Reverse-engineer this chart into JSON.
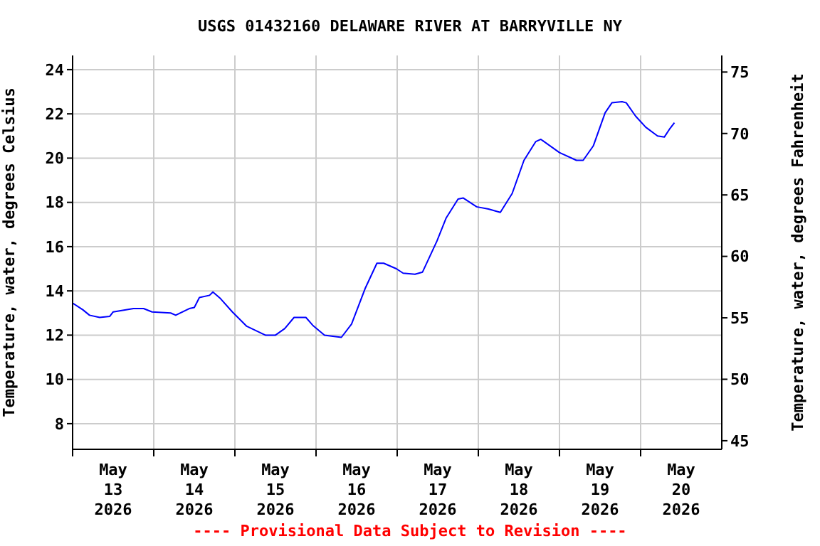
{
  "chart_data": {
    "type": "line",
    "title": "USGS 01432160 DELAWARE RIVER AT BARRYVILLE NY",
    "ylabel": "Temperature, water, degrees Celsius",
    "y2label": "Temperature, water, degrees Fahrenheit",
    "annotations": [
      "---- Provisional Data Subject to Revision ----"
    ],
    "x": [
      "2026-05-13T00:00",
      "2026-05-13T03:00",
      "2026-05-13T05:00",
      "2026-05-13T08:00",
      "2026-05-13T11:00",
      "2026-05-13T12:00",
      "2026-05-13T18:00",
      "2026-05-13T21:00",
      "2026-05-13T23:30",
      "2026-05-14T05:00",
      "2026-05-14T06:30",
      "2026-05-14T10:30",
      "2026-05-14T12:00",
      "2026-05-14T13:30",
      "2026-05-14T16:30",
      "2026-05-14T17:30",
      "2026-05-14T19:45",
      "2026-05-14T23:15",
      "2026-05-15T03:30",
      "2026-05-15T09:00",
      "2026-05-15T12:00",
      "2026-05-15T14:45",
      "2026-05-15T17:30",
      "2026-05-15T21:00",
      "2026-05-15T23:00",
      "2026-05-16T02:30",
      "2026-05-16T07:30",
      "2026-05-16T10:30",
      "2026-05-16T14:30",
      "2026-05-16T18:00",
      "2026-05-16T20:00",
      "2026-05-16T23:45",
      "2026-05-17T01:45",
      "2026-05-17T05:15",
      "2026-05-17T07:30",
      "2026-05-17T11:45",
      "2026-05-17T14:30",
      "2026-05-17T18:00",
      "2026-05-17T19:30",
      "2026-05-17T23:30",
      "2026-05-18T03:00",
      "2026-05-18T06:30",
      "2026-05-18T10:00",
      "2026-05-18T13:30",
      "2026-05-18T17:00",
      "2026-05-18T18:30",
      "2026-05-19T00:00",
      "2026-05-19T05:00",
      "2026-05-19T07:00",
      "2026-05-19T10:00",
      "2026-05-19T13:30",
      "2026-05-19T15:30",
      "2026-05-19T18:30",
      "2026-05-19T19:45",
      "2026-05-19T22:30",
      "2026-05-20T01:30",
      "2026-05-20T05:00",
      "2026-05-20T07:00",
      "2026-05-20T08:30",
      "2026-05-20T10:00"
    ],
    "series": [
      {
        "color": "#0000ff",
        "values": [
          13.45,
          13.15,
          12.9,
          12.8,
          12.85,
          13.05,
          13.2,
          13.2,
          13.05,
          13.0,
          12.9,
          13.2,
          13.25,
          13.7,
          13.8,
          13.95,
          13.65,
          13.05,
          12.4,
          12.0,
          12.0,
          12.3,
          12.8,
          12.8,
          12.45,
          12.0,
          11.9,
          12.5,
          14.1,
          15.25,
          15.25,
          15.0,
          14.8,
          14.75,
          14.85,
          16.25,
          17.3,
          18.15,
          18.2,
          17.8,
          17.7,
          17.55,
          18.4,
          19.9,
          20.75,
          20.85,
          20.25,
          19.9,
          19.9,
          20.55,
          22.05,
          22.5,
          22.55,
          22.5,
          21.9,
          21.4,
          21.0,
          20.95,
          21.3,
          21.6
        ]
      }
    ],
    "xlim": [
      "2026-05-13T00:00",
      "2026-05-21T00:00"
    ],
    "xticks": [
      {
        "value": "2026-05-13T00:00",
        "label": null
      },
      {
        "value": "2026-05-14T00:00",
        "label": null
      },
      {
        "value": "2026-05-15T00:00",
        "label": null
      },
      {
        "value": "2026-05-16T00:00",
        "label": null
      },
      {
        "value": "2026-05-17T00:00",
        "label": null
      },
      {
        "value": "2026-05-18T00:00",
        "label": null
      },
      {
        "value": "2026-05-19T00:00",
        "label": null
      },
      {
        "value": "2026-05-20T00:00",
        "label": null
      },
      {
        "value": "2026-05-13T12:00",
        "label": "May\n13\n2026"
      },
      {
        "value": "2026-05-14T12:00",
        "label": "May\n14\n2026"
      },
      {
        "value": "2026-05-15T12:00",
        "label": "May\n15\n2026"
      },
      {
        "value": "2026-05-16T12:00",
        "label": "May\n16\n2026"
      },
      {
        "value": "2026-05-17T12:00",
        "label": "May\n17\n2026"
      },
      {
        "value": "2026-05-18T12:00",
        "label": "May\n18\n2026"
      },
      {
        "value": "2026-05-19T12:00",
        "label": "May\n19\n2026"
      },
      {
        "value": "2026-05-20T12:00",
        "label": "May\n20\n2026"
      }
    ],
    "ylim": [
      6.84,
      24.64
    ],
    "yticks": [
      8,
      10,
      12,
      14,
      16,
      18,
      20,
      22,
      24
    ],
    "y2lim": [
      44.3,
      76.35
    ],
    "y2ticks": [
      45,
      50,
      55,
      60,
      65,
      70,
      75
    ],
    "grid": true,
    "marker": "none",
    "line_style": "solid"
  }
}
